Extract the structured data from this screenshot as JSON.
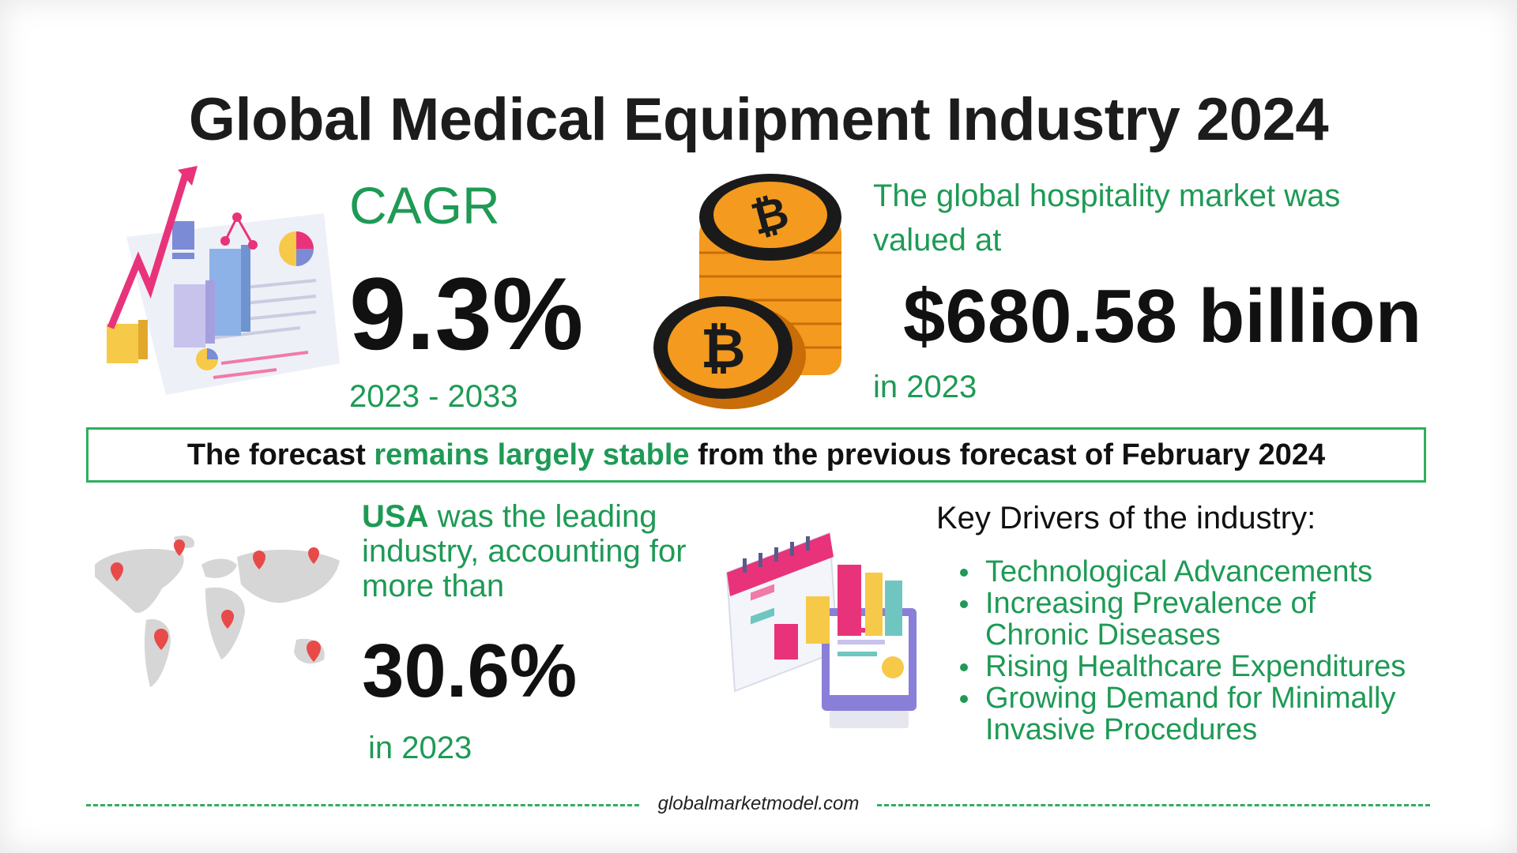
{
  "title": "Global Medical Equipment Industry 2024",
  "cagr": {
    "label": "CAGR",
    "value": "9.3%",
    "period": "2023 - 2033"
  },
  "market": {
    "intro": "The global hospitality market was valued at",
    "value": "$680.58 billion",
    "year": "in 2023"
  },
  "forecast": {
    "prefix": "The forecast",
    "highlight": "remains largely stable",
    "suffix": "from the previous forecast of February 2024"
  },
  "region": {
    "leader": "USA",
    "text": "was the leading industry, accounting for more than",
    "value": "30.6%",
    "year": "in 2023"
  },
  "drivers": {
    "title": "Key Drivers of the industry:",
    "items": [
      "Technological Advancements",
      "Increasing Prevalence of Chronic Diseases",
      "Rising Healthcare Expenditures",
      "Growing Demand for Minimally Invasive Procedures"
    ]
  },
  "footer": {
    "site": "globalmarketmodel.com"
  },
  "colors": {
    "accent_green": "#1e9a55",
    "border_green": "#2fae5c",
    "coin_orange": "#f39a1f",
    "pink": "#e8337a"
  },
  "icons": [
    "growth-chart-illustration",
    "bitcoin-coins-illustration",
    "world-map-pins-illustration",
    "calendar-dashboard-illustration"
  ]
}
